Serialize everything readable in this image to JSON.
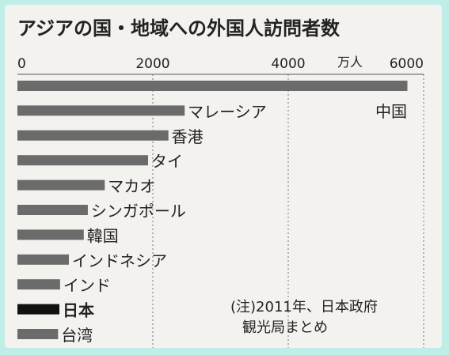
{
  "chart_data": {
    "type": "bar",
    "orientation": "horizontal",
    "title": "アジアの国・地域への外国人訪問者数",
    "unit": "万人",
    "xlim": [
      0,
      6000
    ],
    "xticks": [
      0,
      2000,
      4000,
      6000
    ],
    "grid": "vertical dashed",
    "categories": [
      "中国",
      "マレーシア",
      "香港",
      "タイ",
      "マカオ",
      "シンガポール",
      "韓国",
      "インドネシア",
      "インド",
      "日本",
      "台湾"
    ],
    "values": [
      5760,
      2470,
      2230,
      1930,
      1290,
      1040,
      980,
      760,
      630,
      620,
      600
    ],
    "highlight": "日本",
    "colors": {
      "bar": "#6b6b6b",
      "highlight": "#111111",
      "text": "#222222"
    },
    "note": [
      "(注)2011年、日本政府",
      "観光局まとめ"
    ]
  }
}
